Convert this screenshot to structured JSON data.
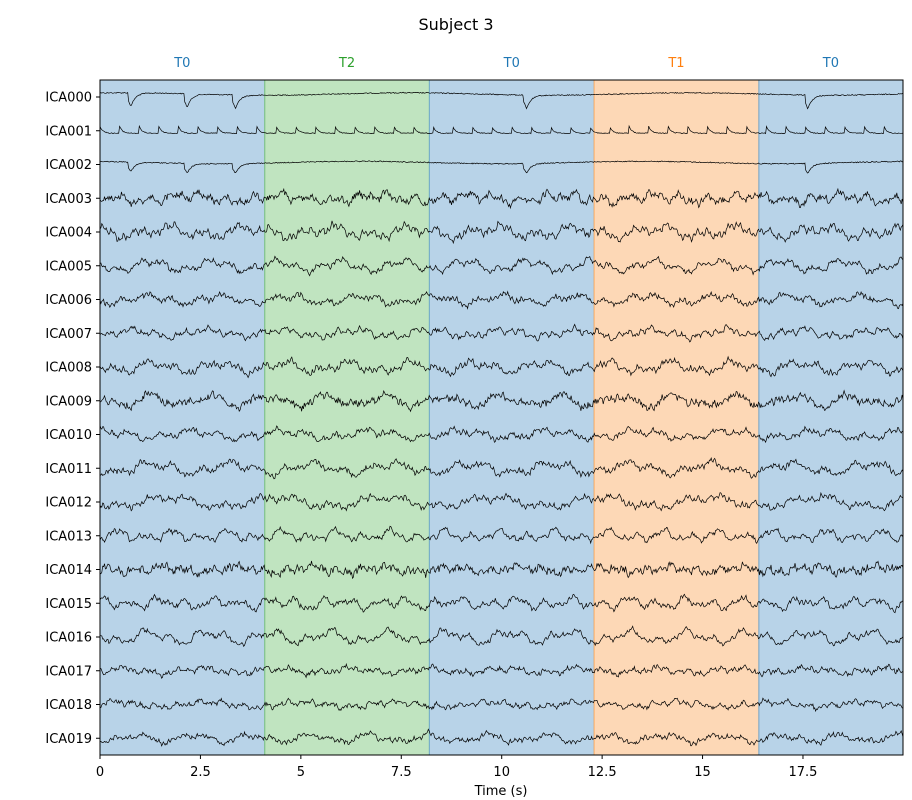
{
  "chart_data": {
    "type": "line",
    "title": "Subject 3",
    "xlabel": "Time (s)",
    "ylabel": "",
    "xlim": [
      0,
      19.99
    ],
    "x_ticks": [
      0,
      2.5,
      5,
      7.5,
      10,
      12.5,
      15,
      17.5
    ],
    "x_tick_labels": [
      "0",
      "2.5",
      "5",
      "7.5",
      "10",
      "12.5",
      "15",
      "17.5"
    ],
    "channels": [
      "ICA000",
      "ICA001",
      "ICA002",
      "ICA003",
      "ICA004",
      "ICA005",
      "ICA006",
      "ICA007",
      "ICA008",
      "ICA009",
      "ICA010",
      "ICA011",
      "ICA012",
      "ICA013",
      "ICA014",
      "ICA015",
      "ICA016",
      "ICA017",
      "ICA018",
      "ICA019"
    ],
    "events": [
      {
        "label": "T0",
        "start": 0.0,
        "end": 4.1,
        "color": "#1f77b4",
        "fill": "#b8d3e8"
      },
      {
        "label": "T2",
        "start": 4.1,
        "end": 8.2,
        "color": "#2ca02c",
        "fill": "#c0e4c0"
      },
      {
        "label": "T0",
        "start": 8.2,
        "end": 12.3,
        "color": "#1f77b4",
        "fill": "#b8d3e8"
      },
      {
        "label": "T1",
        "start": 12.3,
        "end": 16.4,
        "color": "#ff7f0e",
        "fill": "#fdd8b6"
      },
      {
        "label": "T0",
        "start": 16.4,
        "end": 19.99,
        "color": "#1f77b4",
        "fill": "#b8d3e8"
      }
    ],
    "trace_color": "#000000"
  }
}
